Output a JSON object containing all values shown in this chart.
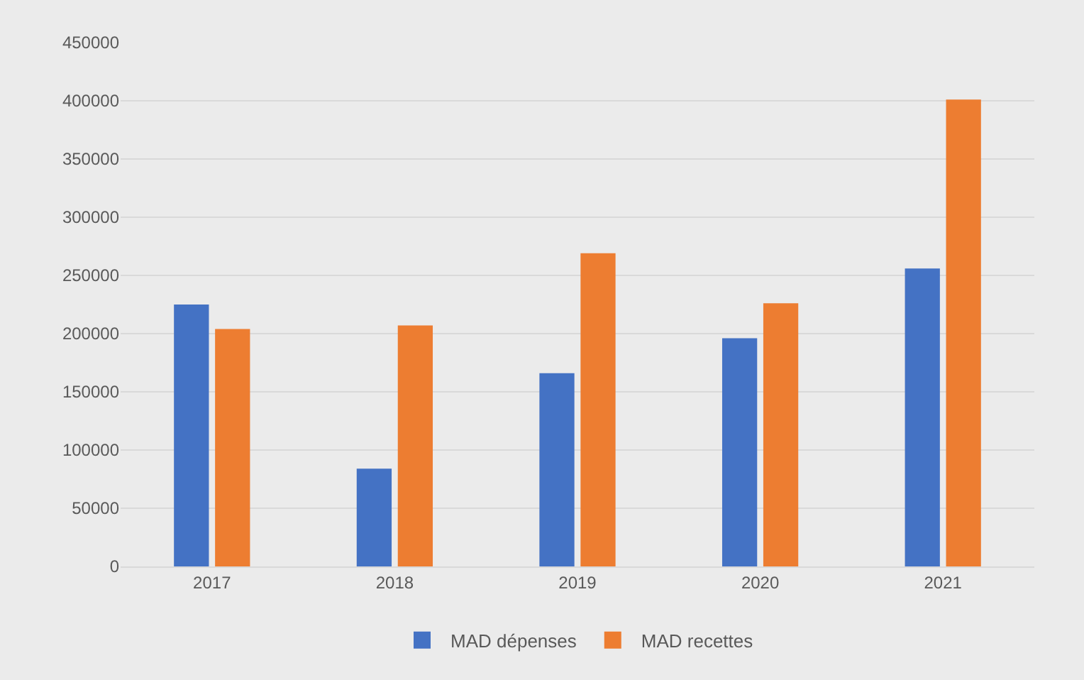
{
  "chart_data": {
    "type": "bar",
    "categories": [
      "2017",
      "2018",
      "2019",
      "2020",
      "2021"
    ],
    "series": [
      {
        "name": "MAD dépenses",
        "color": "#4472c4",
        "values": [
          225000,
          84000,
          166000,
          196000,
          256000
        ]
      },
      {
        "name": "MAD recettes",
        "color": "#ed7d31",
        "values": [
          204000,
          207000,
          269000,
          226000,
          401000
        ]
      }
    ],
    "ylim": [
      0,
      450000
    ],
    "yticks": [
      0,
      50000,
      100000,
      150000,
      200000,
      250000,
      300000,
      350000,
      400000,
      450000
    ],
    "grid": "y",
    "legend": "bottom"
  }
}
